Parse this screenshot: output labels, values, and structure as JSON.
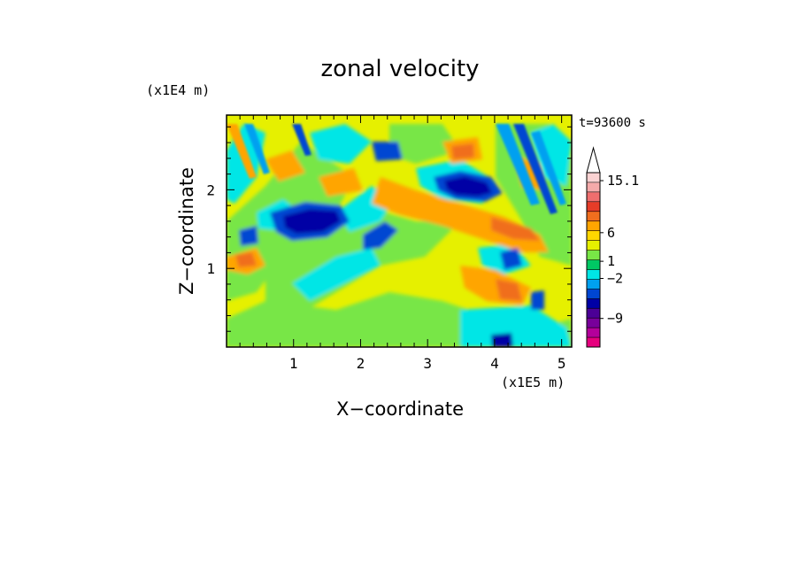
{
  "chart_data": {
    "type": "heatmap",
    "title": "zonal velocity",
    "xlabel": "X−coordinate",
    "ylabel": "Z−coordinate",
    "x_unit": "(x1E5 m)",
    "y_unit": "(x1E4 m)",
    "time_label": "t=93600 s",
    "xlim": [
      0,
      5.15
    ],
    "ylim": [
      0,
      2.95
    ],
    "x_ticks": [
      1,
      2,
      3,
      4,
      5
    ],
    "y_ticks": [
      1,
      2
    ],
    "x_tick_labels": [
      "1",
      "2",
      "3",
      "4",
      "5"
    ],
    "y_tick_labels": [
      "1",
      "2"
    ],
    "colorbar": {
      "labels": [
        "15.1",
        "6",
        "1",
        "−2",
        "−9"
      ],
      "label_values": [
        15.1,
        6,
        1,
        -2,
        -9
      ],
      "colors": [
        "#e6007e",
        "#b4009b",
        "#78009b",
        "#4b0096",
        "#0000a5",
        "#0046d2",
        "#00a0f0",
        "#00e6e6",
        "#00c864",
        "#78e646",
        "#e6f000",
        "#ffd700",
        "#ffa500",
        "#f06e1e",
        "#e63c28",
        "#f06e6e",
        "#f5aaaa",
        "#fad2d2"
      ]
    },
    "features": [
      {
        "x": 1.3,
        "z": 1.55,
        "value": -5.5
      },
      {
        "x": 3.6,
        "z": 2.0,
        "value": -5.0
      },
      {
        "x": 2.2,
        "z": 1.25,
        "value": -3.0
      },
      {
        "x": 4.1,
        "z": 1.1,
        "value": -4.0
      },
      {
        "x": 4.15,
        "z": 0.65,
        "value": 6.0
      },
      {
        "x": 3.5,
        "z": 2.45,
        "value": 5.0
      },
      {
        "x": 4.3,
        "z": 1.55,
        "value": 6.0
      },
      {
        "x": 0.4,
        "z": 1.1,
        "value": 6.0
      },
      {
        "x": 3.3,
        "z": 1.4,
        "value": 3.5
      },
      {
        "x": 2.5,
        "z": 2.1,
        "value": 4.0
      }
    ]
  }
}
